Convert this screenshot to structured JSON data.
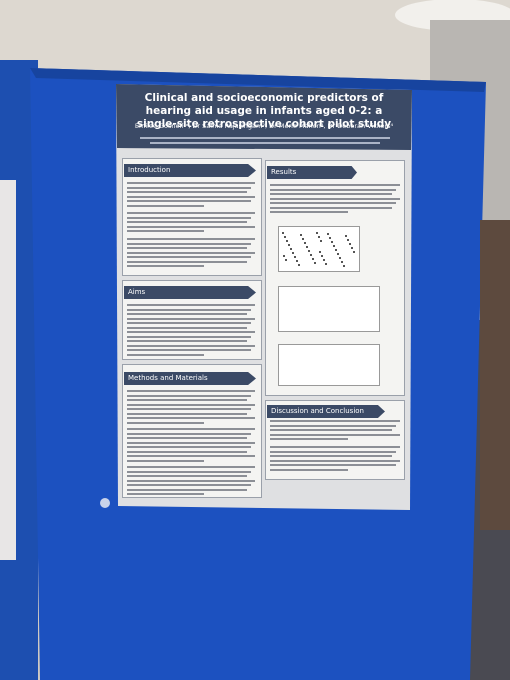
{
  "poster": {
    "title": "Clinical and socioeconomic predictors of hearing aid usage in infants aged 0-2: a single-site retrospective cohort pilot study",
    "authors": "Emilee Gosnell¹ᵃ, Dr Saima Rajasingam², Dr Merle Mahon³, Dr Deborah Vickers⁴",
    "sections": [
      "Introduction",
      "Aims",
      "Methods and Materials",
      "Results",
      "Discussion and Conclusion"
    ]
  }
}
